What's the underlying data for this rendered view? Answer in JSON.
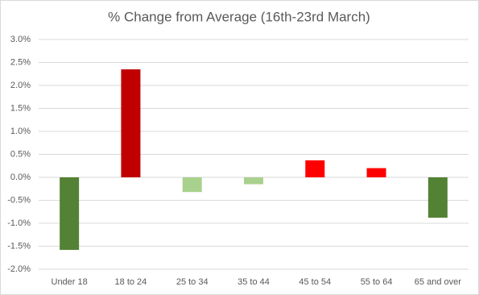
{
  "chart_data": {
    "type": "bar",
    "title": "% Change from Average (16th-23rd March)",
    "categories": [
      "Under 18",
      "18 to 24",
      "25 to 34",
      "35 to 44",
      "45 to 54",
      "55 to 64",
      "65 and over"
    ],
    "values": [
      -1.58,
      2.35,
      -0.32,
      -0.15,
      0.37,
      0.2,
      -0.88
    ],
    "colors": [
      "#548235",
      "#c00000",
      "#a9d18e",
      "#a9d18e",
      "#ff0000",
      "#ff0000",
      "#548235"
    ],
    "ylim": [
      -2.0,
      3.0
    ],
    "yticks": [
      {
        "value": -2.0,
        "label": "-2.0%"
      },
      {
        "value": -1.5,
        "label": "-1.5%"
      },
      {
        "value": -1.0,
        "label": "-1.0%"
      },
      {
        "value": -0.5,
        "label": "-0.5%"
      },
      {
        "value": 0,
        "label": "0.0%"
      },
      {
        "value": 0.5,
        "label": "0.5%"
      },
      {
        "value": 1.0,
        "label": "1.0%"
      },
      {
        "value": 1.5,
        "label": "1.5%"
      },
      {
        "value": 2.0,
        "label": "2.0%"
      },
      {
        "value": 2.5,
        "label": "2.5%"
      },
      {
        "value": 3.0,
        "label": "3.0%"
      }
    ],
    "grid": true
  }
}
